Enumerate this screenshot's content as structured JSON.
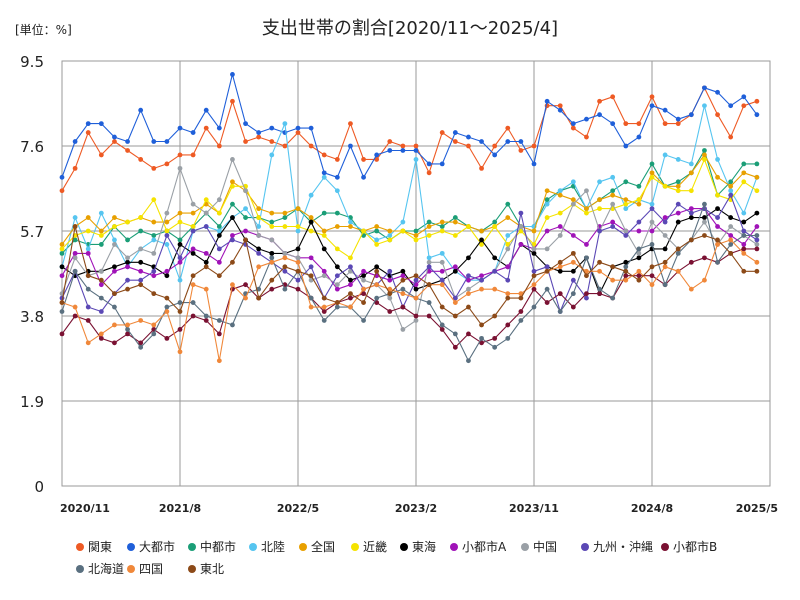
{
  "chart_data": {
    "type": "line",
    "title": "支出世帯の割合[2020/11～2025/4]",
    "unit_label": "[単位：%]",
    "xlabel": "",
    "ylabel": "",
    "ylim": [
      0,
      9.5
    ],
    "yticks": [
      "0",
      "1.9",
      "3.8",
      "5.7",
      "7.6",
      "9.5"
    ],
    "xticks": [
      "2020/11",
      "2021/8",
      "2022/5",
      "2023/2",
      "2023/11",
      "2024/8",
      "2025/5"
    ],
    "grid": true,
    "legend_position": "bottom",
    "x": [
      "2020/11",
      "2020/12",
      "2021/1",
      "2021/2",
      "2021/3",
      "2021/4",
      "2021/5",
      "2021/6",
      "2021/7",
      "2021/8",
      "2021/9",
      "2021/10",
      "2021/11",
      "2021/12",
      "2022/1",
      "2022/2",
      "2022/3",
      "2022/4",
      "2022/5",
      "2022/6",
      "2022/7",
      "2022/8",
      "2022/9",
      "2022/10",
      "2022/11",
      "2022/12",
      "2023/1",
      "2023/2",
      "2023/3",
      "2023/4",
      "2023/5",
      "2023/6",
      "2023/7",
      "2023/8",
      "2023/9",
      "2023/10",
      "2023/11",
      "2023/12",
      "2024/1",
      "2024/2",
      "2024/3",
      "2024/4",
      "2024/5",
      "2024/6",
      "2024/7",
      "2024/8",
      "2024/9",
      "2024/10",
      "2024/11",
      "2024/12",
      "2025/1",
      "2025/2",
      "2025/3",
      "2025/4"
    ],
    "series": [
      {
        "name": "関東",
        "color": "#ee5a24",
        "values": [
          6.6,
          7.1,
          7.9,
          7.4,
          7.7,
          7.5,
          7.3,
          7.1,
          7.2,
          7.4,
          7.4,
          8.0,
          7.6,
          8.6,
          7.7,
          7.8,
          7.7,
          7.6,
          7.9,
          7.6,
          7.4,
          7.3,
          8.1,
          7.3,
          7.3,
          7.7,
          7.6,
          7.6,
          7.0,
          7.9,
          7.7,
          7.6,
          7.1,
          7.6,
          8.0,
          7.5,
          7.6,
          8.5,
          8.5,
          8.0,
          7.8,
          8.6,
          8.7,
          8.1,
          8.1,
          8.7,
          8.1,
          8.1,
          8.3,
          8.9,
          8.3,
          7.8,
          8.5,
          8.6
        ]
      },
      {
        "name": "大都市",
        "color": "#1f5fd9",
        "values": [
          6.9,
          7.7,
          8.1,
          8.1,
          7.8,
          7.7,
          8.4,
          7.7,
          7.7,
          8.0,
          7.9,
          8.4,
          8.0,
          9.2,
          8.1,
          7.9,
          8.0,
          7.9,
          8.0,
          8.0,
          7.0,
          6.9,
          7.6,
          6.9,
          7.4,
          7.5,
          7.5,
          7.5,
          7.2,
          7.2,
          7.9,
          7.8,
          7.7,
          7.4,
          7.7,
          7.7,
          7.2,
          8.6,
          8.4,
          8.1,
          8.2,
          8.3,
          8.1,
          7.6,
          7.8,
          8.5,
          8.4,
          8.2,
          8.3,
          8.9,
          8.8,
          8.5,
          8.7,
          8.3
        ]
      },
      {
        "name": "中都市",
        "color": "#1b9e77",
        "values": [
          5.2,
          5.5,
          5.4,
          5.4,
          5.8,
          5.5,
          5.7,
          5.6,
          5.7,
          5.5,
          5.8,
          6.1,
          5.8,
          6.3,
          6.0,
          6.0,
          5.9,
          6.0,
          6.2,
          5.9,
          6.1,
          6.1,
          6.0,
          5.6,
          5.7,
          5.5,
          5.7,
          5.7,
          5.9,
          5.8,
          6.0,
          5.8,
          5.7,
          5.9,
          6.3,
          5.8,
          5.8,
          6.4,
          6.6,
          6.7,
          6.2,
          6.4,
          6.6,
          6.8,
          6.7,
          7.2,
          6.7,
          6.8,
          7.0,
          7.5,
          6.5,
          6.8,
          7.2,
          7.2
        ]
      },
      {
        "name": "北陸",
        "color": "#56c5f0",
        "values": [
          4.9,
          6.0,
          5.3,
          6.1,
          5.5,
          4.9,
          5.3,
          5.5,
          5.4,
          4.6,
          5.7,
          5.8,
          5.7,
          6.0,
          6.2,
          5.8,
          7.4,
          8.1,
          5.7,
          6.5,
          6.9,
          6.6,
          5.9,
          5.7,
          5.5,
          5.6,
          5.9,
          7.3,
          5.1,
          5.2,
          4.8,
          4.6,
          4.6,
          4.8,
          5.6,
          5.8,
          5.8,
          6.3,
          6.6,
          6.8,
          6.2,
          6.8,
          6.9,
          6.2,
          6.4,
          6.3,
          7.4,
          7.3,
          7.2,
          8.5,
          7.3,
          6.6,
          6.1,
          6.9
        ]
      },
      {
        "name": "全国",
        "color": "#e8a000",
        "values": [
          5.4,
          5.8,
          6.0,
          5.7,
          6.0,
          5.9,
          6.0,
          5.9,
          5.9,
          6.1,
          6.1,
          6.3,
          6.1,
          6.8,
          6.6,
          6.2,
          6.1,
          6.1,
          6.2,
          6.0,
          5.7,
          5.8,
          5.8,
          5.7,
          5.8,
          5.7,
          5.7,
          5.6,
          5.8,
          5.9,
          5.9,
          5.8,
          5.7,
          5.8,
          6.0,
          5.8,
          5.7,
          6.6,
          6.5,
          6.4,
          6.2,
          6.4,
          6.5,
          6.4,
          6.3,
          7.0,
          6.7,
          6.7,
          7.0,
          7.4,
          6.9,
          6.7,
          7.0,
          6.9
        ]
      },
      {
        "name": "近畿",
        "color": "#f5e300",
        "values": [
          5.3,
          5.6,
          5.7,
          5.6,
          5.8,
          5.9,
          6.0,
          6.4,
          5.7,
          5.9,
          5.8,
          6.4,
          6.1,
          6.7,
          6.7,
          6.0,
          5.8,
          5.8,
          5.8,
          5.7,
          5.6,
          5.3,
          5.1,
          5.7,
          5.4,
          5.5,
          5.7,
          5.5,
          5.6,
          5.7,
          5.6,
          5.8,
          5.4,
          5.8,
          5.4,
          5.7,
          5.4,
          6.0,
          6.1,
          6.3,
          6.1,
          6.2,
          6.2,
          6.3,
          6.4,
          6.9,
          6.7,
          6.6,
          6.6,
          7.3,
          6.5,
          6.4,
          6.8,
          6.6
        ]
      },
      {
        "name": "東海",
        "color": "#000000",
        "values": [
          4.9,
          4.7,
          4.8,
          4.8,
          4.9,
          5.0,
          5.0,
          4.9,
          4.7,
          5.4,
          5.2,
          5.0,
          5.6,
          6.0,
          5.5,
          5.3,
          5.2,
          5.2,
          5.3,
          5.9,
          5.3,
          4.9,
          4.6,
          4.7,
          4.9,
          4.7,
          4.8,
          4.4,
          4.5,
          4.6,
          4.8,
          5.1,
          5.5,
          5.1,
          4.9,
          5.4,
          5.2,
          4.9,
          4.8,
          4.8,
          5.1,
          4.3,
          4.9,
          5.0,
          5.1,
          5.3,
          5.3,
          5.9,
          6.0,
          6.0,
          6.2,
          6.0,
          5.9,
          6.1
        ]
      },
      {
        "name": "小都市A",
        "color": "#a013b8",
        "values": [
          4.7,
          5.2,
          5.2,
          4.5,
          4.8,
          4.9,
          4.8,
          4.7,
          4.8,
          5.0,
          5.3,
          5.2,
          5.0,
          5.6,
          5.7,
          5.6,
          5.5,
          5.2,
          5.1,
          5.1,
          4.8,
          4.4,
          4.5,
          4.8,
          4.7,
          4.6,
          4.7,
          4.5,
          4.8,
          4.8,
          4.9,
          4.6,
          4.7,
          4.8,
          4.9,
          5.4,
          5.3,
          5.7,
          5.8,
          5.6,
          5.4,
          5.8,
          5.9,
          5.7,
          5.7,
          5.7,
          6.0,
          6.1,
          6.2,
          6.2,
          5.8,
          5.6,
          5.4,
          5.8
        ]
      },
      {
        "name": "中国",
        "color": "#9aa0a6",
        "values": [
          4.3,
          5.1,
          4.7,
          4.8,
          5.4,
          5.1,
          5.3,
          5.2,
          6.1,
          7.1,
          6.3,
          6.1,
          6.4,
          7.3,
          6.6,
          5.6,
          5.5,
          5.2,
          5.1,
          4.6,
          4.7,
          4.5,
          4.8,
          4.6,
          4.5,
          4.2,
          3.5,
          3.7,
          5.0,
          5.0,
          4.2,
          4.4,
          4.6,
          4.8,
          5.3,
          5.8,
          5.3,
          5.3,
          5.6,
          6.3,
          6.6,
          5.7,
          6.3,
          5.7,
          5.2,
          5.9,
          5.6,
          5.3,
          5.5,
          5.9,
          5.4,
          5.8,
          5.6,
          5.4
        ]
      },
      {
        "name": "九州・沖縄",
        "color": "#5b48b5",
        "values": [
          4.2,
          4.8,
          4.0,
          3.9,
          4.3,
          4.6,
          4.6,
          4.8,
          5.6,
          5.1,
          5.7,
          5.8,
          5.3,
          5.5,
          5.4,
          5.2,
          5.0,
          4.8,
          4.6,
          4.9,
          4.2,
          4.7,
          4.9,
          4.4,
          4.5,
          4.8,
          4.0,
          4.6,
          4.9,
          4.6,
          4.2,
          4.7,
          4.6,
          4.8,
          4.6,
          6.1,
          4.8,
          4.9,
          3.9,
          4.6,
          4.2,
          5.7,
          5.8,
          5.6,
          5.9,
          6.2,
          5.9,
          6.3,
          6.1,
          6.2,
          6.0,
          6.5,
          5.7,
          5.5
        ]
      },
      {
        "name": "小都市B",
        "color": "#7a1132",
        "values": [
          3.4,
          3.8,
          3.7,
          3.3,
          3.2,
          3.4,
          3.2,
          3.5,
          3.3,
          3.5,
          3.8,
          3.7,
          3.4,
          4.4,
          4.5,
          4.2,
          4.4,
          4.5,
          4.4,
          4.2,
          3.9,
          4.1,
          4.2,
          4.3,
          4.1,
          3.9,
          4.0,
          3.8,
          3.8,
          3.5,
          3.1,
          3.4,
          3.2,
          3.3,
          3.6,
          3.9,
          4.4,
          4.1,
          4.3,
          4.0,
          4.3,
          4.3,
          4.2,
          4.7,
          4.7,
          4.7,
          4.5,
          4.8,
          5.0,
          5.1,
          5.0,
          5.2,
          5.3,
          5.3
        ]
      },
      {
        "name": "北海道",
        "color": "#5a7080",
        "values": [
          3.9,
          4.8,
          4.4,
          4.2,
          4.0,
          3.5,
          3.1,
          3.4,
          4.0,
          4.1,
          4.1,
          3.8,
          3.7,
          3.6,
          4.3,
          4.4,
          5.1,
          4.4,
          4.8,
          4.2,
          3.7,
          4.0,
          4.0,
          3.7,
          4.2,
          4.3,
          4.4,
          4.2,
          4.1,
          3.6,
          3.4,
          2.8,
          3.3,
          3.1,
          3.3,
          3.7,
          4.0,
          4.4,
          3.9,
          4.3,
          5.1,
          4.4,
          4.2,
          4.9,
          5.3,
          5.4,
          4.5,
          5.2,
          5.5,
          6.3,
          5.0,
          5.4,
          5.6,
          5.6
        ]
      },
      {
        "name": "四国",
        "color": "#f0883a",
        "values": [
          4.1,
          4.0,
          3.2,
          3.4,
          3.6,
          3.6,
          3.7,
          3.6,
          3.9,
          3.0,
          4.5,
          4.4,
          2.8,
          4.5,
          4.2,
          4.9,
          5.0,
          5.1,
          5.0,
          4.0,
          4.0,
          4.1,
          4.0,
          4.4,
          4.5,
          4.4,
          4.3,
          4.2,
          4.5,
          4.5,
          4.1,
          4.3,
          4.4,
          4.4,
          4.3,
          4.3,
          4.5,
          4.8,
          4.9,
          5.0,
          4.8,
          4.8,
          4.6,
          4.6,
          4.8,
          4.5,
          4.9,
          4.8,
          4.4,
          4.6,
          5.4,
          5.5,
          5.2,
          5.0
        ]
      },
      {
        "name": "東北",
        "color": "#8c4a18",
        "values": [
          4.1,
          5.8,
          4.7,
          4.6,
          4.3,
          4.4,
          4.5,
          4.3,
          4.2,
          3.9,
          4.7,
          4.9,
          4.7,
          5.0,
          5.5,
          4.2,
          4.6,
          4.9,
          4.8,
          4.7,
          4.2,
          4.1,
          4.3,
          4.1,
          4.8,
          4.3,
          4.6,
          4.7,
          4.5,
          4.0,
          3.8,
          4.0,
          3.6,
          3.8,
          4.2,
          4.2,
          4.7,
          4.8,
          5.0,
          5.2,
          4.7,
          5.0,
          4.9,
          4.8,
          4.6,
          4.9,
          5.0,
          5.3,
          5.5,
          5.6,
          5.5,
          5.2,
          4.8,
          4.8
        ]
      }
    ]
  }
}
